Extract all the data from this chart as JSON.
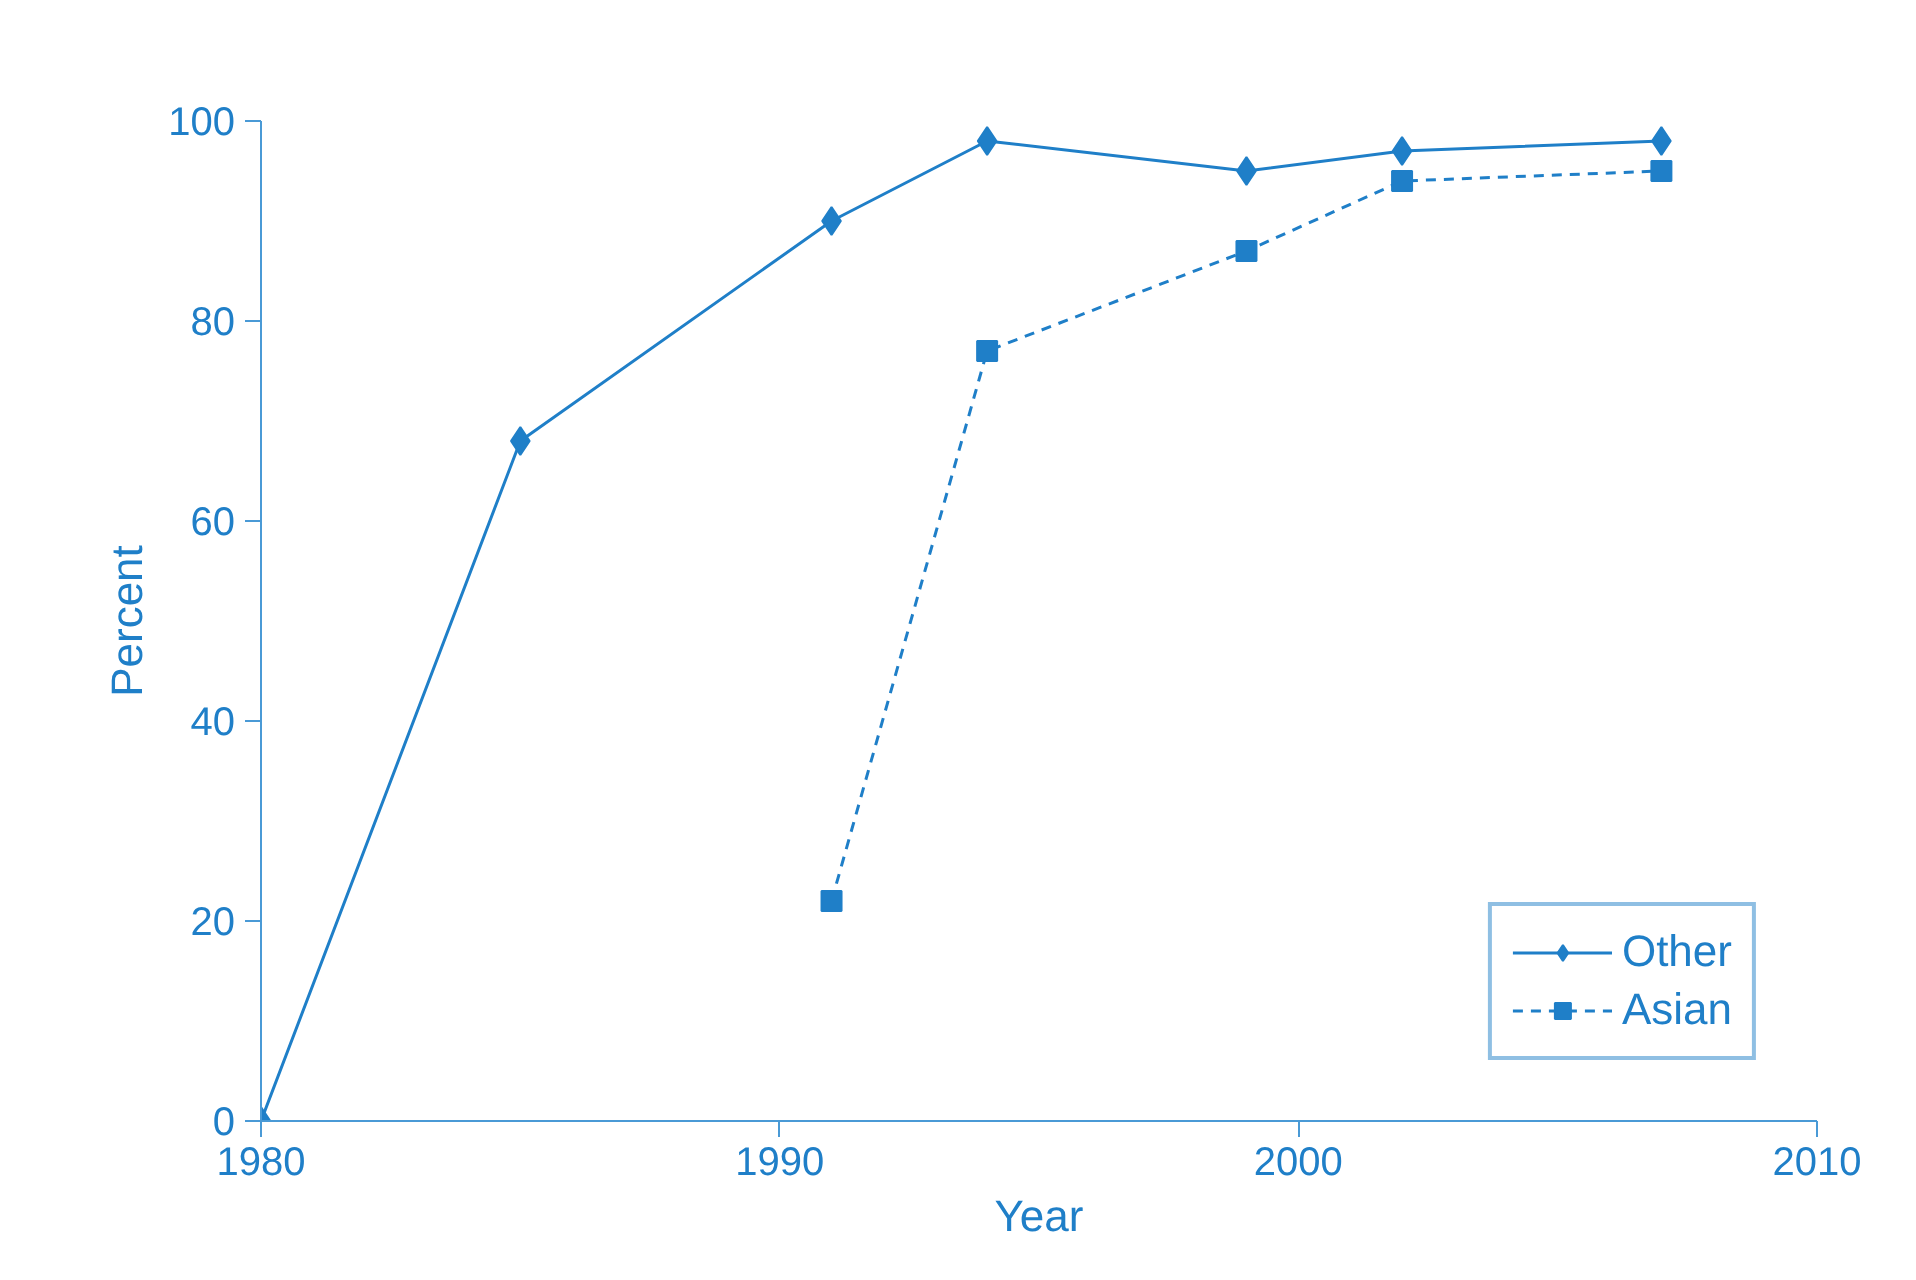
{
  "chart_data": {
    "type": "line",
    "xlabel": "Year",
    "ylabel": "Percent",
    "xlim": [
      1980,
      2010
    ],
    "xticks": [
      1980,
      1990,
      2000,
      2010
    ],
    "ylim": [
      0,
      100
    ],
    "yticks": [
      0,
      20,
      40,
      60,
      80,
      100
    ],
    "grid": false,
    "legend": "bottom right",
    "series": [
      {
        "name": "Other",
        "color": "#1f7fc8",
        "marker": "diamond",
        "line_style": "solid",
        "x": [
          1980,
          1985,
          1991,
          1994,
          1999,
          2002,
          2007
        ],
        "values": [
          0,
          68,
          90,
          98,
          95,
          97,
          98
        ]
      },
      {
        "name": "Asian",
        "color": "#1f7fc8",
        "marker": "square",
        "line_style": "dashed",
        "x": [
          1991,
          1994,
          1999,
          2002,
          2007
        ],
        "values": [
          22,
          77,
          87,
          94,
          95
        ]
      }
    ]
  }
}
